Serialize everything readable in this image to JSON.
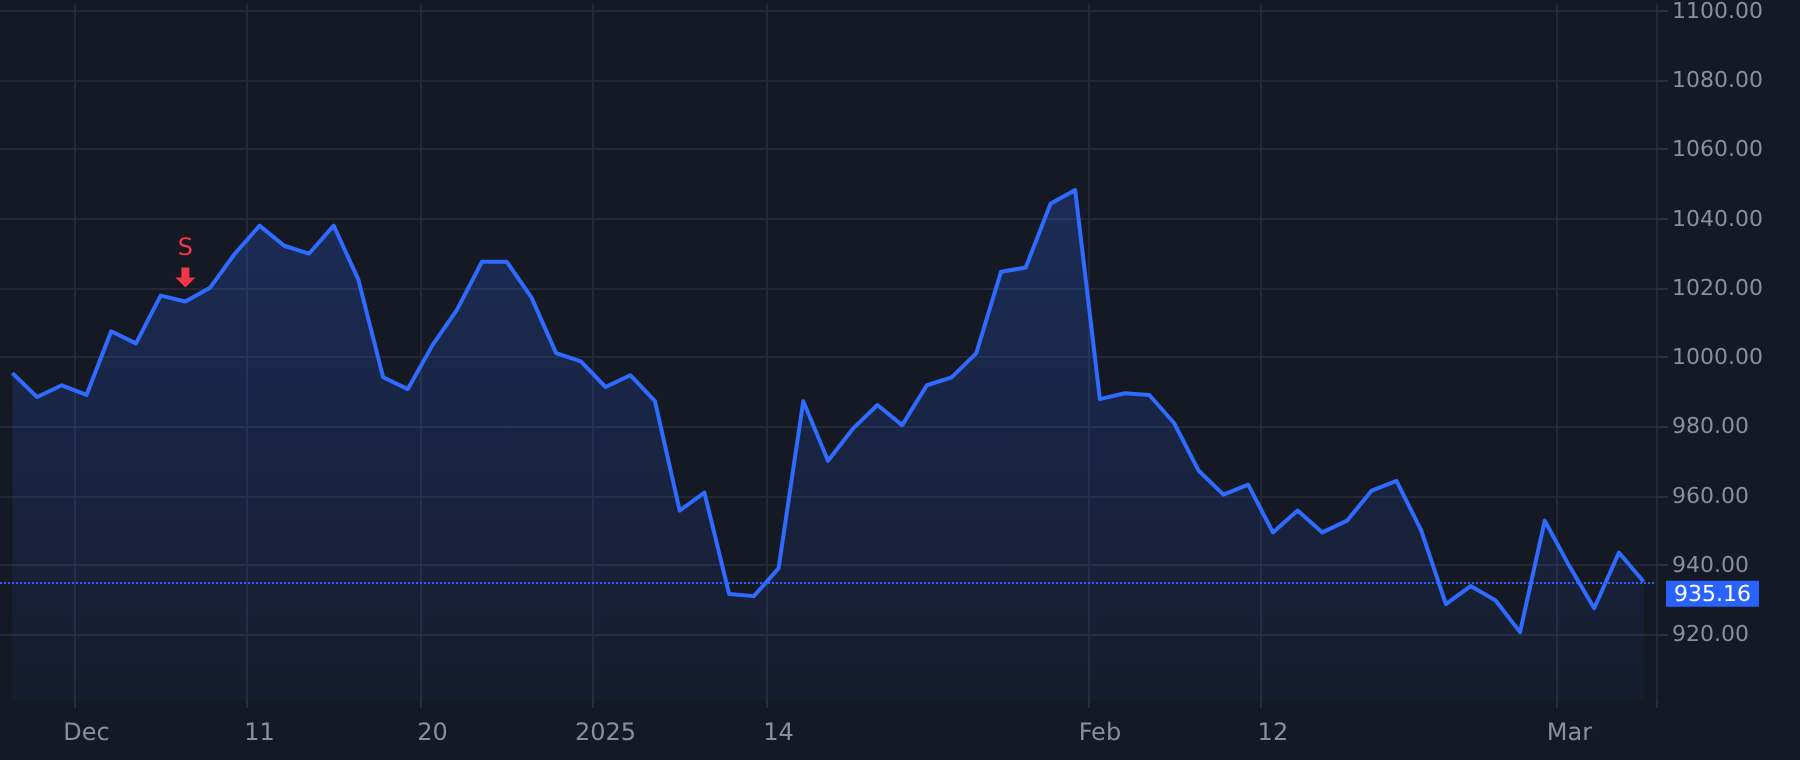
{
  "chart_data": {
    "type": "area",
    "categories": [
      null,
      null,
      null,
      "Dec",
      null,
      null,
      null,
      null,
      null,
      null,
      "11",
      null,
      null,
      null,
      null,
      null,
      null,
      "20",
      null,
      null,
      null,
      null,
      null,
      null,
      "2025",
      null,
      null,
      null,
      null,
      null,
      null,
      "14",
      null,
      null,
      null,
      null,
      null,
      null,
      null,
      null,
      null,
      null,
      null,
      null,
      "Feb",
      null,
      null,
      null,
      null,
      null,
      null,
      "12",
      null,
      null,
      null,
      null,
      null,
      null,
      null,
      null,
      null,
      null,
      null,
      "Mar",
      null,
      null,
      null
    ],
    "series": [
      {
        "color": "#2f6bff",
        "values": [
          995.4,
          988.5,
          991.9,
          989.1,
          1007.5,
          1004.0,
          1017.8,
          1016.1,
          1020.1,
          1029.9,
          1038.0,
          1032.2,
          1029.9,
          1038.0,
          1022.4,
          994.2,
          990.8,
          1003.5,
          1013.8,
          1027.6,
          1027.6,
          1017.3,
          1001.2,
          998.8,
          991.4,
          994.8,
          987.3,
          955.7,
          960.9,
          931.6,
          931.0,
          939.0,
          987.3,
          970.1,
          979.3,
          986.2,
          980.4,
          991.9,
          994.2,
          1001.2,
          1024.7,
          1025.9,
          1044.3,
          1048.3,
          987.9,
          989.6,
          989.1,
          981.0,
          967.2,
          960.3,
          963.2,
          949.4,
          955.7,
          949.4,
          952.8,
          961.5,
          964.3,
          950.0,
          928.7,
          933.9,
          929.8,
          920.6,
          952.8,
          939.6,
          927.5,
          943.6,
          935.16
        ]
      }
    ],
    "ylim": [
      901,
      1102
    ],
    "yticks": [
      {
        "value": 920,
        "label": "920.00"
      },
      {
        "value": 940,
        "label": "940.00"
      },
      {
        "value": 960,
        "label": "960.00"
      },
      {
        "value": 980,
        "label": "980.00"
      },
      {
        "value": 1000,
        "label": "1000.00"
      },
      {
        "value": 1020,
        "label": "1020.00"
      },
      {
        "value": 1040,
        "label": "1040.00"
      },
      {
        "value": 1060,
        "label": "1060.00"
      },
      {
        "value": 1080,
        "label": "1080.00"
      },
      {
        "value": 1100,
        "label": "1100.00"
      }
    ],
    "grid": true,
    "ref_lines": [
      {
        "axis": "y",
        "value": 935.16,
        "label": "935.16",
        "color": "#2962ff",
        "line_style": "dotted"
      }
    ],
    "annotations": [
      {
        "text": "S",
        "y": 1016.1
      }
    ]
  }
}
